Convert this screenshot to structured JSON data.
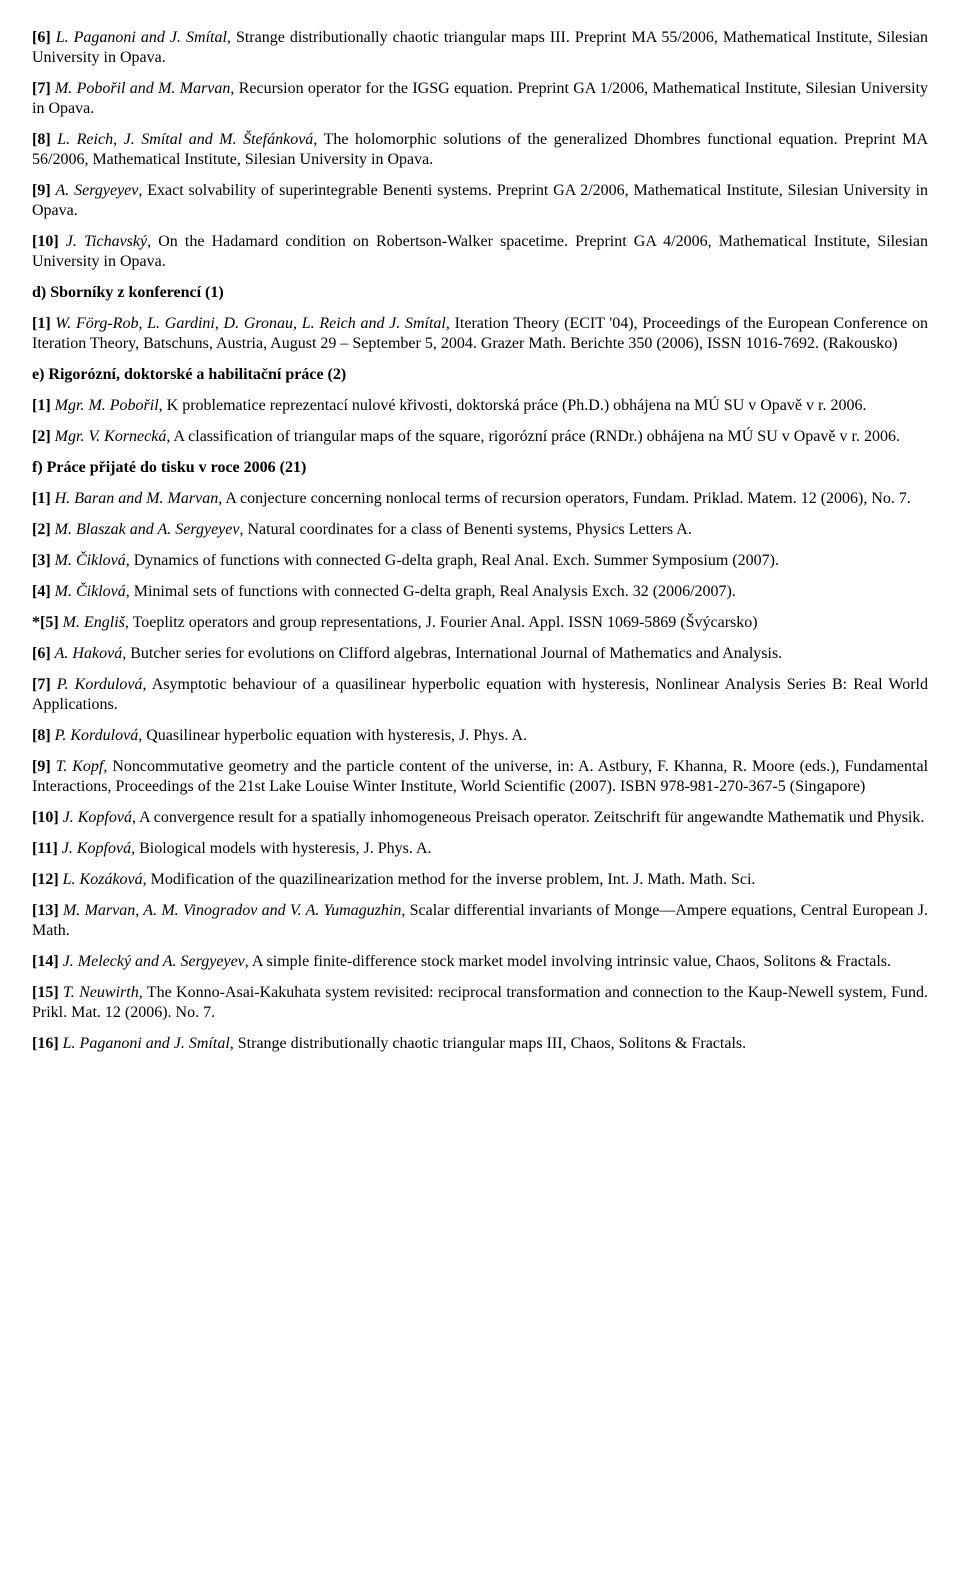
{
  "refs_a": [
    {
      "num": "[6]",
      "authors": "L. Paganoni and J. Smítal",
      "title": ", Strange distributionally chaotic triangular maps III. Preprint MA 55/2006, Mathematical Institute, Silesian University in Opava."
    },
    {
      "num": "[7]",
      "authors": "M. Pobořil and M. Marvan",
      "title": ", Recursion operator for the IGSG equation. Preprint GA 1/2006, Mathematical Institute, Silesian University in Opava."
    },
    {
      "num": "[8]",
      "authors": "L. Reich, J. Smítal and M. Štefánková",
      "title": ", The holomorphic solutions of the generalized Dhombres functional equation. Preprint MA 56/2006, Mathematical Institute, Silesian University in Opava."
    },
    {
      "num": "[9]",
      "authors": "A. Sergyeyev",
      "title": ", Exact solvability of superintegrable Benenti systems. Preprint GA 2/2006, Mathematical Institute, Silesian University in Opava."
    },
    {
      "num": "[10]",
      "authors": "J. Tichavský,",
      "title": " On the Hadamard condition on Robertson-Walker spacetime. Preprint GA 4/2006, Mathematical Institute, Silesian University in Opava."
    }
  ],
  "heading_d": "d) Sborníky z konferencí (1)",
  "refs_d": [
    {
      "num": "[1]",
      "authors": "W. Förg-Rob, L. Gardini, D. Gronau, L. Reich and J. Smítal",
      "title": ", Iteration Theory (ECIT '04), Proceedings of the European Conference on Iteration Theory, Batschuns, Austria, August 29 – September 5, 2004. Grazer Math. Berichte 350 (2006), ISSN 1016-7692. (Rakousko)"
    }
  ],
  "heading_e": "e) Rigorózní, doktorské a habilitační práce (2)",
  "refs_e": [
    {
      "num": "[1]",
      "authors": "Mgr. M. Pobořil,",
      "title": " K problematice reprezentací nulové křivosti, doktorská práce (Ph.D.) obhájena na MÚ SU v Opavě v r. 2006."
    },
    {
      "num": "[2]",
      "authors": "Mgr. V. Kornecká,",
      "title": " A classification of triangular maps of the square, rigorózní práce (RNDr.) obhájena na MÚ SU v Opavě v r. 2006."
    }
  ],
  "heading_f": "f) Práce přijaté do tisku v roce 2006 (21)",
  "refs_f": [
    {
      "num": "[1]",
      "authors": "H. Baran and M. Marvan",
      "title": ", A conjecture concerning nonlocal terms of recursion operators, Fundam. Priklad. Matem. 12 (2006), No. 7."
    },
    {
      "num": "[2]",
      "authors": "M. Blaszak and A. Sergyeyev",
      "title": ", Natural coordinates for a class of Benenti systems, Physics Letters A."
    },
    {
      "num": "[3]",
      "authors": "M. Čiklová",
      "title": ", Dynamics of functions with connected G-delta graph, Real Anal. Exch. Summer Symposium (2007)."
    },
    {
      "num": "[4]",
      "authors": "M. Čiklová",
      "title": ", Minimal sets of functions with connected G-delta graph, Real Analysis Exch. 32 (2006/2007)."
    },
    {
      "num": "*[5]",
      "authors": "M. Engliš",
      "title": ", Toeplitz operators and group representations, J. Fourier Anal. Appl. ISSN 1069-5869 (Švýcarsko)"
    },
    {
      "num": "[6]",
      "authors": "A. Haková",
      "title": ", Butcher series for evolutions on Clifford algebras, International Journal of Mathematics and Analysis."
    },
    {
      "num": "[7]",
      "authors": "P. Kordulová,",
      "title": " Asymptotic behaviour of a quasilinear hyperbolic equation with hysteresis, Nonlinear Analysis Series B: Real World Applications."
    },
    {
      "num": "[8]",
      "authors": "P. Kordulová,",
      "title": " Quasilinear hyperbolic equation with hysteresis, J. Phys. A."
    },
    {
      "num": "[9]",
      "authors": "T. Kopf,",
      "title": " Noncommutative geometry and the particle content of the universe, in: A. Astbury, F. Khanna, R. Moore (eds.), Fundamental Interactions, Proceedings of the 21st Lake Louise Winter Institute, World Scientific (2007). ISBN 978-981-270-367-5 (Singapore)"
    },
    {
      "num": "[10]",
      "authors": "J. Kopfová,",
      "title": " A convergence result for a spatially inhomogeneous Preisach operator. Zeitschrift für angewandte Mathematik und Physik."
    },
    {
      "num": "[11]",
      "authors": "J. Kopfová,",
      "title": " Biological models with hysteresis, J. Phys. A."
    },
    {
      "num": "[12]",
      "authors": "L. Kozáková,",
      "title": " Modification of the quazilinearization method for the inverse problem, Int. J. Math. Math. Sci."
    },
    {
      "num": "[13]",
      "authors": "M. Marvan, A. M. Vinogradov and V. A. Yumaguzhin",
      "title": ", Scalar differential invariants of Monge—Ampere equations, Central European J. Math."
    },
    {
      "num": "[14]",
      "authors": "J. Melecký and A. Sergyeyev",
      "title": ", A simple finite-difference stock market model involving intrinsic value, Chaos, Solitons & Fractals."
    },
    {
      "num": "[15]",
      "authors": "T. Neuwirth,",
      "title": " The Konno-Asai-Kakuhata system revisited: reciprocal transformation and connection to the Kaup-Newell system, Fund. Prikl. Mat. 12 (2006). No. 7."
    },
    {
      "num": "[16]",
      "authors": "L. Paganoni and J. Smítal",
      "title": ", Strange distributionally chaotic triangular maps III, Chaos, Solitons & Fractals."
    }
  ]
}
